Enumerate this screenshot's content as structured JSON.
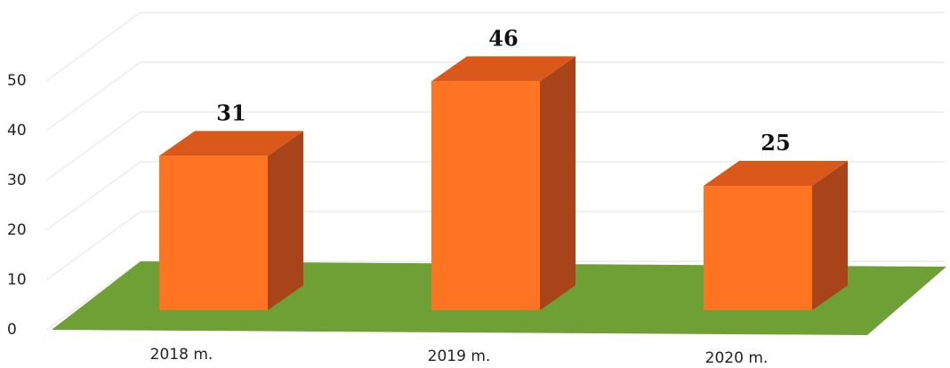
{
  "chart_data": {
    "type": "bar",
    "categories": [
      "2018 m.",
      "2019 m.",
      "2020 m."
    ],
    "values": [
      31,
      46,
      25
    ],
    "title": "",
    "xlabel": "",
    "ylabel": "",
    "ylim": [
      0,
      50
    ],
    "yticks": [
      "0",
      "10",
      "20",
      "30",
      "40",
      "50"
    ],
    "grid": true,
    "legend": "none",
    "three_d": true,
    "colors": {
      "bar_front": "#FF7420",
      "bar_top": "#D9581A",
      "bar_side": "#A9441A",
      "floor": "#6FA035",
      "gridline": "#ECECEC"
    }
  }
}
